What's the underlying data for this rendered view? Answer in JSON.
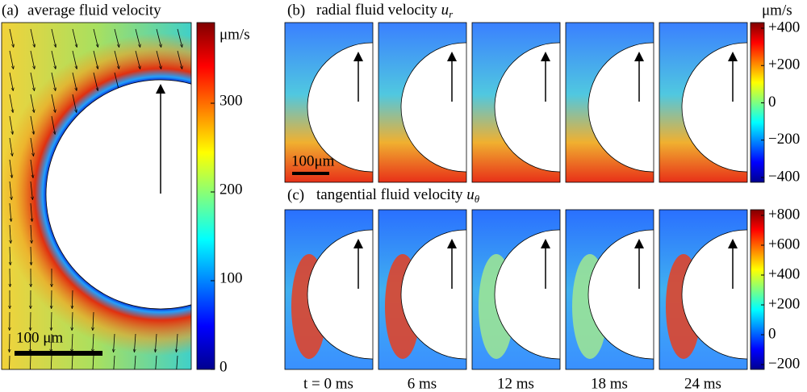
{
  "panel_a": {
    "label": "(a)",
    "title": "average fluid velocity",
    "scale_bar": "100 μm",
    "colorbar": {
      "unit": "μm/s",
      "ticks": [
        "0",
        "100",
        "200",
        "300"
      ]
    }
  },
  "panel_b": {
    "label": "(b)",
    "title": "radial fluid velocity",
    "symbol": "u",
    "subscript": "r",
    "scale_bar": "100μm",
    "colorbar": {
      "unit": "μm/s",
      "ticks": [
        "+400",
        "+200",
        "0",
        "−200",
        "−400"
      ]
    }
  },
  "panel_c": {
    "label": "(c)",
    "title": "tangential fluid velocity",
    "symbol": "u",
    "subscript": "θ",
    "colorbar": {
      "ticks": [
        "+800",
        "+600",
        "+400",
        "+200",
        "0",
        "−200"
      ]
    }
  },
  "time_labels": [
    "t = 0 ms",
    "6 ms",
    "12 ms",
    "18 ms",
    "24 ms"
  ]
}
